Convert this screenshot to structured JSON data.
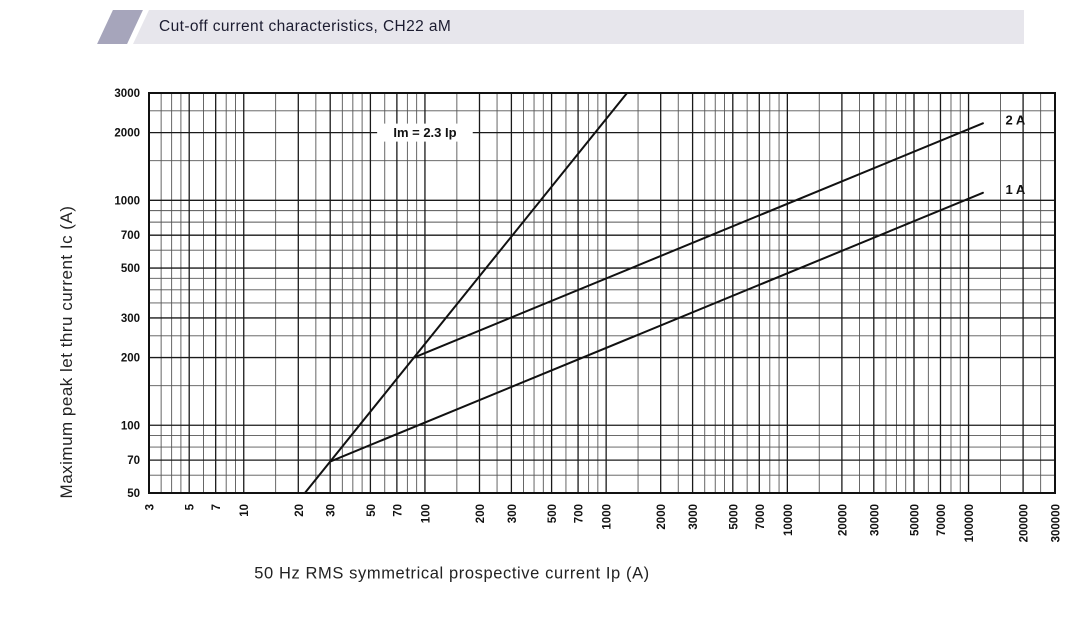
{
  "header": {
    "title": "Cut-off current characteristics, CH22 aM",
    "accent_color": "#a6a5bb",
    "strip_color": "#e7e6ec"
  },
  "chart_data": {
    "type": "line",
    "title": "Cut-off current characteristics, CH22 aM",
    "xlabel": "50 Hz RMS symmetrical prospective current Ip (A)",
    "ylabel": "Maximum peak let thru current Ic (A)",
    "x_axis": {
      "scale": "log",
      "min": 3,
      "max": 300000,
      "tick_labels": [
        3,
        5,
        7,
        10,
        20,
        30,
        50,
        70,
        100,
        200,
        300,
        500,
        700,
        1000,
        2000,
        3000,
        5000,
        7000,
        10000,
        20000,
        30000,
        50000,
        70000,
        100000,
        200000,
        300000
      ]
    },
    "y_axis": {
      "scale": "log",
      "min": 50,
      "max": 3000,
      "tick_labels": [
        50,
        70,
        100,
        200,
        300,
        500,
        700,
        1000,
        2000,
        3000
      ]
    },
    "grid": {
      "on": true,
      "multipliers_per_decade": [
        1,
        1.5,
        2,
        2.5,
        3,
        3.5,
        4,
        4.5,
        5,
        6,
        7,
        8,
        9
      ],
      "major_multipliers": [
        1,
        2,
        3,
        5,
        7
      ],
      "major_color": "#1a1a1a",
      "minor_color": "#555555"
    },
    "series_color": "#111111",
    "series": [
      {
        "name": "Im = 2.3 Ip",
        "points": [
          [
            21.74,
            50
          ],
          [
            1304.3,
            3000
          ]
        ],
        "label": {
          "at": [
            100,
            2000
          ],
          "boxed": true
        }
      },
      {
        "name": "2 A",
        "points": [
          [
            87,
            200
          ],
          [
            120000,
            2200
          ]
        ],
        "label": {
          "at": [
            160000,
            2280
          ],
          "boxed": false
        }
      },
      {
        "name": "1 A",
        "points": [
          [
            30,
            69
          ],
          [
            120000,
            1080
          ]
        ],
        "label": {
          "at": [
            160000,
            1120
          ],
          "boxed": false
        }
      }
    ]
  }
}
